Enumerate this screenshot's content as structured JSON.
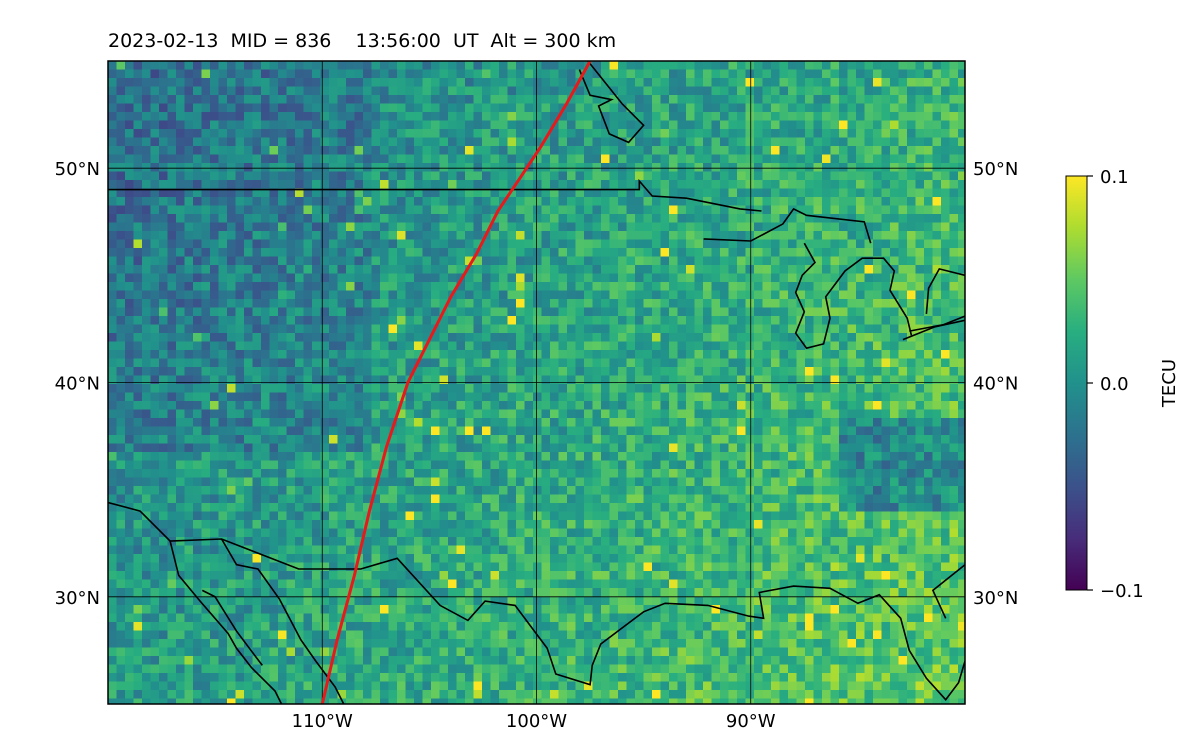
{
  "title": "2023-02-13  MID = 836    13:56:00  UT  Alt = 300 km",
  "map": {
    "lon_range": [
      -120,
      -80
    ],
    "lat_range": [
      25,
      55
    ],
    "lat_labels": [
      "50°N",
      "40°N",
      "30°N"
    ],
    "lat_values": [
      50,
      40,
      30
    ],
    "lon_labels": [
      "110°W",
      "100°W",
      "90°W"
    ],
    "lon_values": [
      -110,
      -100,
      -90
    ],
    "grid": true
  },
  "colorbar": {
    "label": "TECU",
    "ticks": [
      "0.1",
      "0.0",
      "−0.1"
    ],
    "tick_values": [
      0.1,
      0.0,
      -0.1
    ],
    "colormap": "viridis",
    "min": -0.1,
    "max": 0.1
  },
  "track": {
    "color": "#e8191b",
    "points": [
      [
        -110.0,
        25.0
      ],
      [
        -109.3,
        28.0
      ],
      [
        -108.5,
        31.0
      ],
      [
        -107.8,
        34.0
      ],
      [
        -107.0,
        37.0
      ],
      [
        -106.0,
        40.0
      ],
      [
        -105.0,
        42.0
      ],
      [
        -104.0,
        44.0
      ],
      [
        -102.8,
        46.0
      ],
      [
        -101.8,
        48.0
      ],
      [
        -100.8,
        49.5
      ],
      [
        -99.8,
        51.0
      ],
      [
        -98.6,
        53.0
      ],
      [
        -97.5,
        55.0
      ]
    ]
  }
}
